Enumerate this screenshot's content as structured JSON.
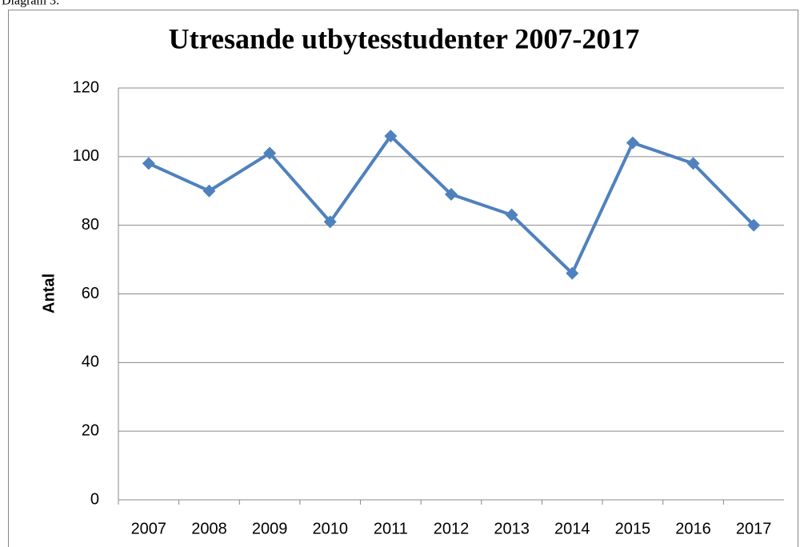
{
  "caption": "Diagram 3:",
  "chart_data": {
    "type": "line",
    "title": "Utresande utbytesstudenter 2007-2017",
    "ylabel": "Antal",
    "categories": [
      "2007",
      "2008",
      "2009",
      "2010",
      "2011",
      "2012",
      "2013",
      "2014",
      "2015",
      "2016",
      "2017"
    ],
    "series": [
      {
        "name": "Antal",
        "color": "#4f81bd",
        "values": [
          98,
          90,
          101,
          81,
          106,
          89,
          83,
          66,
          104,
          98,
          80
        ]
      }
    ],
    "ylim": [
      0,
      120
    ],
    "yticks": [
      0,
      20,
      40,
      60,
      80,
      100,
      120
    ],
    "grid": true
  }
}
